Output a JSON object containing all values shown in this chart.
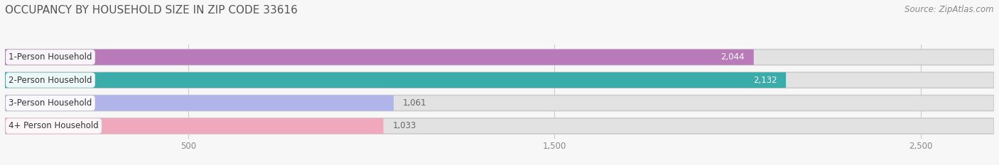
{
  "title": "OCCUPANCY BY HOUSEHOLD SIZE IN ZIP CODE 33616",
  "source": "Source: ZipAtlas.com",
  "categories": [
    "1-Person Household",
    "2-Person Household",
    "3-Person Household",
    "4+ Person Household"
  ],
  "values": [
    2044,
    2132,
    1061,
    1033
  ],
  "bar_colors": [
    "#b87ab8",
    "#3aacaa",
    "#b0b4e8",
    "#f0a8bc"
  ],
  "label_bg_colors": [
    "#b87ab8",
    "#3aacaa",
    "#b0b4e8",
    "#f0a8bc"
  ],
  "bg_color": "#f7f7f7",
  "bar_bg_color": "#e2e2e2",
  "xlim_max": 2700,
  "xticks": [
    500,
    1500,
    2500
  ],
  "xtick_labels": [
    "500",
    "1,500",
    "2,500"
  ],
  "title_fontsize": 11,
  "label_fontsize": 8.5,
  "value_fontsize": 8.5,
  "source_fontsize": 8.5
}
